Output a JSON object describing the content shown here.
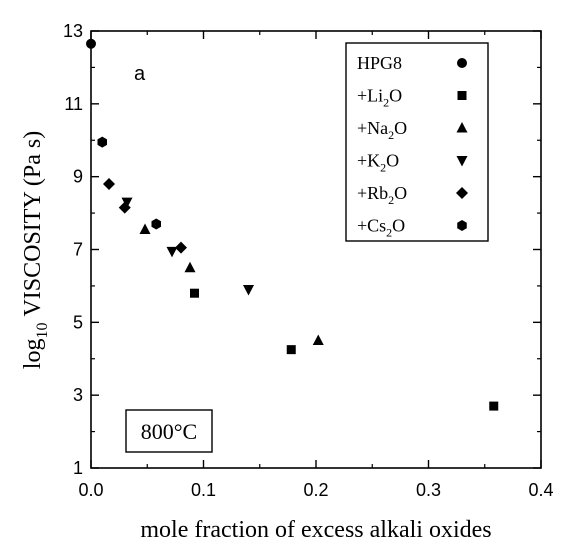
{
  "chart_data": {
    "type": "scatter",
    "title": "",
    "panel_label": "a",
    "xlabel": "mole fraction of excess alkali oxides",
    "ylabel_main": "VISCOSITY (Pa s)",
    "ylabel_log": "log",
    "ylabel_log_sub": "10",
    "xlim": [
      0,
      0.4
    ],
    "ylim": [
      1,
      13
    ],
    "x_ticks": [
      0.0,
      0.1,
      0.2,
      0.3,
      0.4
    ],
    "x_tick_labels": [
      "0.0",
      "0.1",
      "0.2",
      "0.3",
      "0.4"
    ],
    "y_ticks": [
      1,
      3,
      5,
      7,
      9,
      11,
      13
    ],
    "y_tick_labels": [
      "1",
      "3",
      "5",
      "7",
      "9",
      "11",
      "13"
    ],
    "grid": false,
    "legend_position": "top-right",
    "annotation": "800°C",
    "series": [
      {
        "name": "HPG8",
        "name_prefix": "HPG8",
        "name_sub": "",
        "name_suffix": "",
        "marker": "circle",
        "points": [
          [
            0.0,
            12.65
          ]
        ]
      },
      {
        "name": "+Li2O",
        "name_prefix": "+Li",
        "name_sub": "2",
        "name_suffix": "O",
        "marker": "square",
        "points": [
          [
            0.092,
            5.8
          ],
          [
            0.178,
            4.25
          ],
          [
            0.358,
            2.7
          ]
        ]
      },
      {
        "name": "+Na2O",
        "name_prefix": "+Na",
        "name_sub": "2",
        "name_suffix": "O",
        "marker": "triangle-up",
        "points": [
          [
            0.048,
            7.55
          ],
          [
            0.088,
            6.5
          ],
          [
            0.202,
            4.5
          ]
        ]
      },
      {
        "name": "+K2O",
        "name_prefix": "+K",
        "name_sub": "2",
        "name_suffix": "O",
        "marker": "triangle-down",
        "points": [
          [
            0.032,
            8.3
          ],
          [
            0.072,
            6.95
          ],
          [
            0.14,
            5.9
          ]
        ]
      },
      {
        "name": "+Rb2O",
        "name_prefix": "+Rb",
        "name_sub": "2",
        "name_suffix": "O",
        "marker": "diamond",
        "points": [
          [
            0.016,
            8.8
          ],
          [
            0.03,
            8.15
          ],
          [
            0.08,
            7.05
          ]
        ]
      },
      {
        "name": "+Cs2O",
        "name_prefix": "+Cs",
        "name_sub": "2",
        "name_suffix": "O",
        "marker": "hexagon",
        "points": [
          [
            0.01,
            9.95
          ],
          [
            0.058,
            7.7
          ]
        ]
      }
    ]
  }
}
